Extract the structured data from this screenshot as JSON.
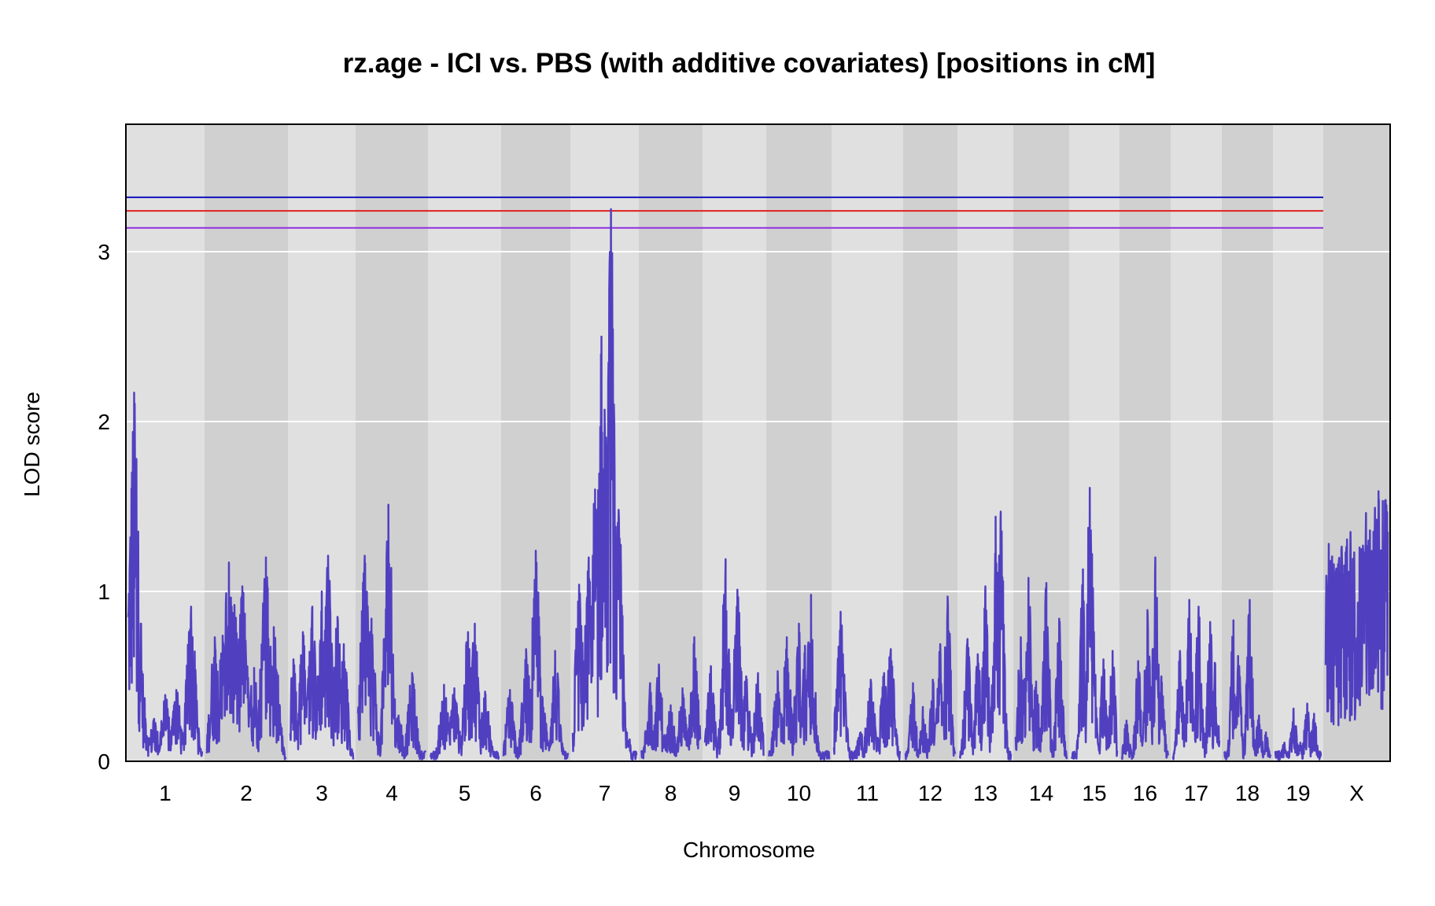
{
  "chart_data": {
    "type": "line",
    "title": "rz.age - ICI vs. PBS (with additive covariates) [positions in cM]",
    "xlabel": "Chromosome",
    "ylabel": "LOD score",
    "ylim": [
      0,
      3.75
    ],
    "yticks": [
      0,
      1,
      2,
      3
    ],
    "grid": "horizontal",
    "background_colors": [
      "#e0e0e0",
      "#d0d0d0"
    ],
    "line_color": "#5040c0",
    "chromosomes": [
      "1",
      "2",
      "3",
      "4",
      "5",
      "6",
      "7",
      "8",
      "9",
      "10",
      "11",
      "12",
      "13",
      "14",
      "15",
      "16",
      "17",
      "18",
      "19",
      "X"
    ],
    "thresholds": [
      {
        "value": 3.32,
        "color": "#1010c0"
      },
      {
        "value": 3.24,
        "color": "#e02020"
      },
      {
        "value": 3.14,
        "color": "#9030e0"
      }
    ],
    "series": [
      {
        "peaks": [
          {
            "chr": "1",
            "x": [
              0.05,
              0.08,
              0.12,
              0.2,
              0.35,
              0.5,
              0.65,
              0.85
            ],
            "y": [
              1.7,
              2.17,
              1.3,
              0.4,
              0.25,
              0.39,
              0.42,
              0.91
            ]
          },
          {
            "chr": "2",
            "x": [
              0.1,
              0.2,
              0.28,
              0.35,
              0.45,
              0.6,
              0.75,
              0.85
            ],
            "y": [
              0.73,
              0.74,
              1.17,
              0.92,
              1.03,
              0.55,
              1.2,
              0.79
            ]
          },
          {
            "chr": "3",
            "x": [
              0.05,
              0.2,
              0.35,
              0.5,
              0.6,
              0.75,
              0.85
            ],
            "y": [
              0.6,
              0.76,
              0.91,
              1.0,
              1.21,
              0.85,
              0.69
            ]
          },
          {
            "chr": "4",
            "x": [
              0.1,
              0.2,
              0.45,
              0.6,
              0.8
            ],
            "y": [
              1.21,
              0.84,
              1.51,
              0.27,
              0.52
            ]
          },
          {
            "chr": "5",
            "x": [
              0.2,
              0.35,
              0.55,
              0.65,
              0.8
            ],
            "y": [
              0.45,
              0.43,
              0.76,
              0.81,
              0.41
            ]
          },
          {
            "chr": "6",
            "x": [
              0.1,
              0.35,
              0.5,
              0.6,
              0.8
            ],
            "y": [
              0.42,
              0.66,
              1.24,
              0.38,
              0.65
            ]
          },
          {
            "chr": "7",
            "x": [
              0.1,
              0.25,
              0.35,
              0.45,
              0.5,
              0.6,
              0.72,
              0.85
            ],
            "y": [
              1.04,
              1.2,
              1.6,
              2.5,
              2.07,
              3.25,
              1.48,
              0.17
            ]
          },
          {
            "chr": "8",
            "x": [
              0.15,
              0.3,
              0.5,
              0.7,
              0.9
            ],
            "y": [
              0.46,
              0.57,
              0.33,
              0.43,
              0.73
            ]
          },
          {
            "chr": "9",
            "x": [
              0.1,
              0.35,
              0.55,
              0.7,
              0.9
            ],
            "y": [
              0.56,
              1.19,
              1.01,
              0.5,
              0.52
            ]
          },
          {
            "chr": "10",
            "x": [
              0.15,
              0.3,
              0.5,
              0.6,
              0.7
            ],
            "y": [
              0.53,
              0.73,
              0.81,
              0.68,
              0.98
            ]
          },
          {
            "chr": "11",
            "x": [
              0.1,
              0.4,
              0.55,
              0.75,
              0.85
            ],
            "y": [
              0.88,
              0.17,
              0.48,
              0.52,
              0.66
            ]
          },
          {
            "chr": "12",
            "x": [
              0.15,
              0.35,
              0.55,
              0.7,
              0.85
            ],
            "y": [
              0.46,
              0.32,
              0.48,
              0.69,
              0.97
            ]
          },
          {
            "chr": "13",
            "x": [
              0.15,
              0.35,
              0.5,
              0.7,
              0.8
            ],
            "y": [
              0.72,
              0.63,
              1.03,
              1.44,
              1.47
            ]
          },
          {
            "chr": "14",
            "x": [
              0.1,
              0.25,
              0.4,
              0.6,
              0.85
            ],
            "y": [
              0.73,
              1.08,
              0.47,
              1.05,
              0.84
            ]
          },
          {
            "chr": "15",
            "x": [
              0.25,
              0.4,
              0.45,
              0.7,
              0.9
            ],
            "y": [
              1.13,
              1.61,
              1.22,
              0.6,
              0.65
            ]
          },
          {
            "chr": "16",
            "x": [
              0.1,
              0.35,
              0.55,
              0.72,
              0.85
            ],
            "y": [
              0.24,
              0.59,
              0.89,
              1.2,
              0.5
            ]
          },
          {
            "chr": "17",
            "x": [
              0.15,
              0.35,
              0.55,
              0.8,
              0.9
            ],
            "y": [
              0.65,
              0.95,
              0.91,
              0.82,
              0.58
            ]
          },
          {
            "chr": "18",
            "x": [
              0.2,
              0.3,
              0.55,
              0.75,
              0.9
            ],
            "y": [
              0.83,
              0.62,
              0.95,
              0.27,
              0.17
            ]
          },
          {
            "chr": "19",
            "x": [
              0.2,
              0.4,
              0.55,
              0.7,
              0.85
            ],
            "y": [
              0.11,
              0.31,
              0.11,
              0.34,
              0.28
            ]
          },
          {
            "chr": "X",
            "x": [
              0.05,
              0.2,
              0.4,
              0.6,
              0.85,
              0.95
            ],
            "y": [
              1.28,
              1.16,
              1.35,
              1.27,
              1.59,
              0.95
            ]
          }
        ]
      }
    ]
  }
}
